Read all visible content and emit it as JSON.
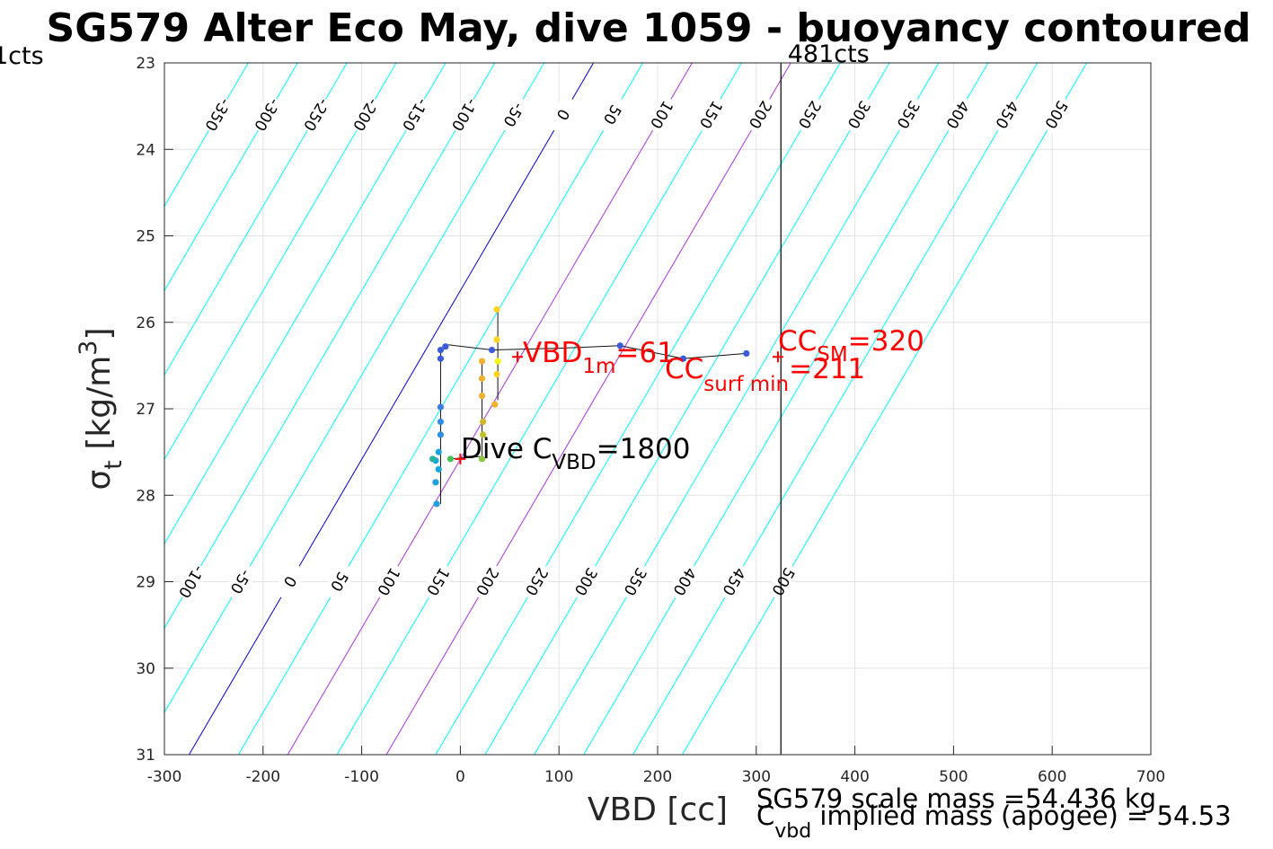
{
  "chart_data": {
    "type": "scatter",
    "title": "SG579 Alter Eco May, dive 1059 - buoyancy contoured",
    "xlabel": "VBD [cc]",
    "ylabel_main": "σ",
    "ylabel_sub": "t",
    "ylabel_unit_a": "[kg/m",
    "ylabel_unit_sup": "3",
    "ylabel_unit_b": "]",
    "xlim": [
      -300,
      700
    ],
    "ylim": [
      23,
      31
    ],
    "y_reversed": true,
    "grid": true,
    "x_ticks": [
      -300,
      -200,
      -100,
      0,
      100,
      200,
      300,
      400,
      500,
      600,
      700
    ],
    "y_ticks": [
      23,
      24,
      25,
      26,
      27,
      28,
      29,
      30,
      31
    ],
    "contour_levels": [
      -350,
      -300,
      -250,
      -200,
      -150,
      -100,
      -50,
      0,
      50,
      100,
      150,
      200,
      250,
      300,
      350,
      400,
      450,
      500
    ],
    "top_contour_labels": [
      -350,
      -300,
      -250,
      -200,
      -150,
      -100,
      -50,
      0,
      50,
      100,
      150,
      200,
      250,
      300,
      350,
      400,
      450,
      500
    ],
    "bottom_contour_labels": [
      -100,
      -50,
      0,
      50,
      100,
      150,
      200,
      250,
      300,
      350,
      400,
      450,
      500
    ],
    "highlight_zero_color": "#0000cc",
    "highlight_range_color": "#aa33dd",
    "highlight_range_levels": [
      100,
      200
    ],
    "contour_color": "#00ffff",
    "vertical_line_vbd": 325,
    "vertical_line_label": "481cts",
    "left_clipped_label": "1cts",
    "points": [
      {
        "vbd": -15,
        "sigma": 26.28,
        "color": "#3b5bd9"
      },
      {
        "vbd": -20,
        "sigma": 26.32,
        "color": "#3b5bd9"
      },
      {
        "vbd": -20,
        "sigma": 26.42,
        "color": "#3b5bd9"
      },
      {
        "vbd": -20,
        "sigma": 26.98,
        "color": "#3b7be3"
      },
      {
        "vbd": -20,
        "sigma": 27.15,
        "color": "#2f8fe6"
      },
      {
        "vbd": -20,
        "sigma": 27.3,
        "color": "#2f8fe6"
      },
      {
        "vbd": -22,
        "sigma": 27.5,
        "color": "#1aa6d8"
      },
      {
        "vbd": -25,
        "sigma": 27.6,
        "color": "#1aa6d8"
      },
      {
        "vbd": -22,
        "sigma": 27.7,
        "color": "#1aa6d8"
      },
      {
        "vbd": -25,
        "sigma": 27.85,
        "color": "#22a0de"
      },
      {
        "vbd": -24,
        "sigma": 28.1,
        "color": "#22a0de"
      },
      {
        "vbd": -28,
        "sigma": 27.58,
        "color": "#24b3a0"
      },
      {
        "vbd": -10,
        "sigma": 27.58,
        "color": "#48c05a"
      },
      {
        "vbd": 22,
        "sigma": 27.58,
        "color": "#8cc63f"
      },
      {
        "vbd": 23,
        "sigma": 27.3,
        "color": "#bfbf2a"
      },
      {
        "vbd": 23,
        "sigma": 27.15,
        "color": "#cfb72a"
      },
      {
        "vbd": 22,
        "sigma": 26.85,
        "color": "#f0b030"
      },
      {
        "vbd": 22,
        "sigma": 26.65,
        "color": "#f0b030"
      },
      {
        "vbd": 22,
        "sigma": 26.45,
        "color": "#f0b030"
      },
      {
        "vbd": 35,
        "sigma": 26.95,
        "color": "#f0b030"
      },
      {
        "vbd": 37,
        "sigma": 26.6,
        "color": "#ffd320"
      },
      {
        "vbd": 37,
        "sigma": 26.2,
        "color": "#ffd320"
      },
      {
        "vbd": 37,
        "sigma": 25.85,
        "color": "#ffd320"
      },
      {
        "vbd": 38,
        "sigma": 26.45,
        "color": "#f5f51a"
      },
      {
        "vbd": 32,
        "sigma": 26.32,
        "color": "#3b5bd9"
      },
      {
        "vbd": 162,
        "sigma": 26.27,
        "color": "#3b5bd9"
      },
      {
        "vbd": 226,
        "sigma": 26.42,
        "color": "#3b5bd9"
      },
      {
        "vbd": 290,
        "sigma": 26.36,
        "color": "#3b5bd9"
      }
    ],
    "trace": [
      [
        -12,
        26.26
      ],
      [
        32,
        26.32
      ],
      [
        100,
        26.3
      ],
      [
        162,
        26.27
      ],
      [
        226,
        26.42
      ],
      [
        290,
        26.36
      ]
    ],
    "trace2": [
      [
        -20,
        26.3
      ],
      [
        -20,
        28.1
      ]
    ],
    "trace3": [
      [
        22,
        26.45
      ],
      [
        22,
        27.55
      ],
      [
        -10,
        27.58
      ]
    ],
    "trace4": [
      [
        38,
        26.9
      ],
      [
        38,
        25.85
      ]
    ],
    "markers": [
      {
        "vbd": 0,
        "sigma": 27.58
      },
      {
        "vbd": 58,
        "sigma": 26.4
      },
      {
        "vbd": 322,
        "sigma": 26.4
      }
    ],
    "annotations": {
      "vbd1m_main": "VBD",
      "vbd1m_sub": "1m",
      "vbd1m_value": "=61",
      "ccsm_main": "CC",
      "ccsm_sub": "SM",
      "ccsm_value": "=320",
      "ccsurf_main": "CC",
      "ccsurf_sub": "surf min",
      "ccsurf_value": "=211",
      "dive_main": "Dive C",
      "dive_sub": "VBD",
      "dive_value": "=1800"
    },
    "footer_line1": "SG579 scale mass =54.436 kg",
    "footer_line2_main": "C",
    "footer_line2_sub": "vbd",
    "footer_line2_rest": " implied mass (apogee) = 54.53"
  }
}
